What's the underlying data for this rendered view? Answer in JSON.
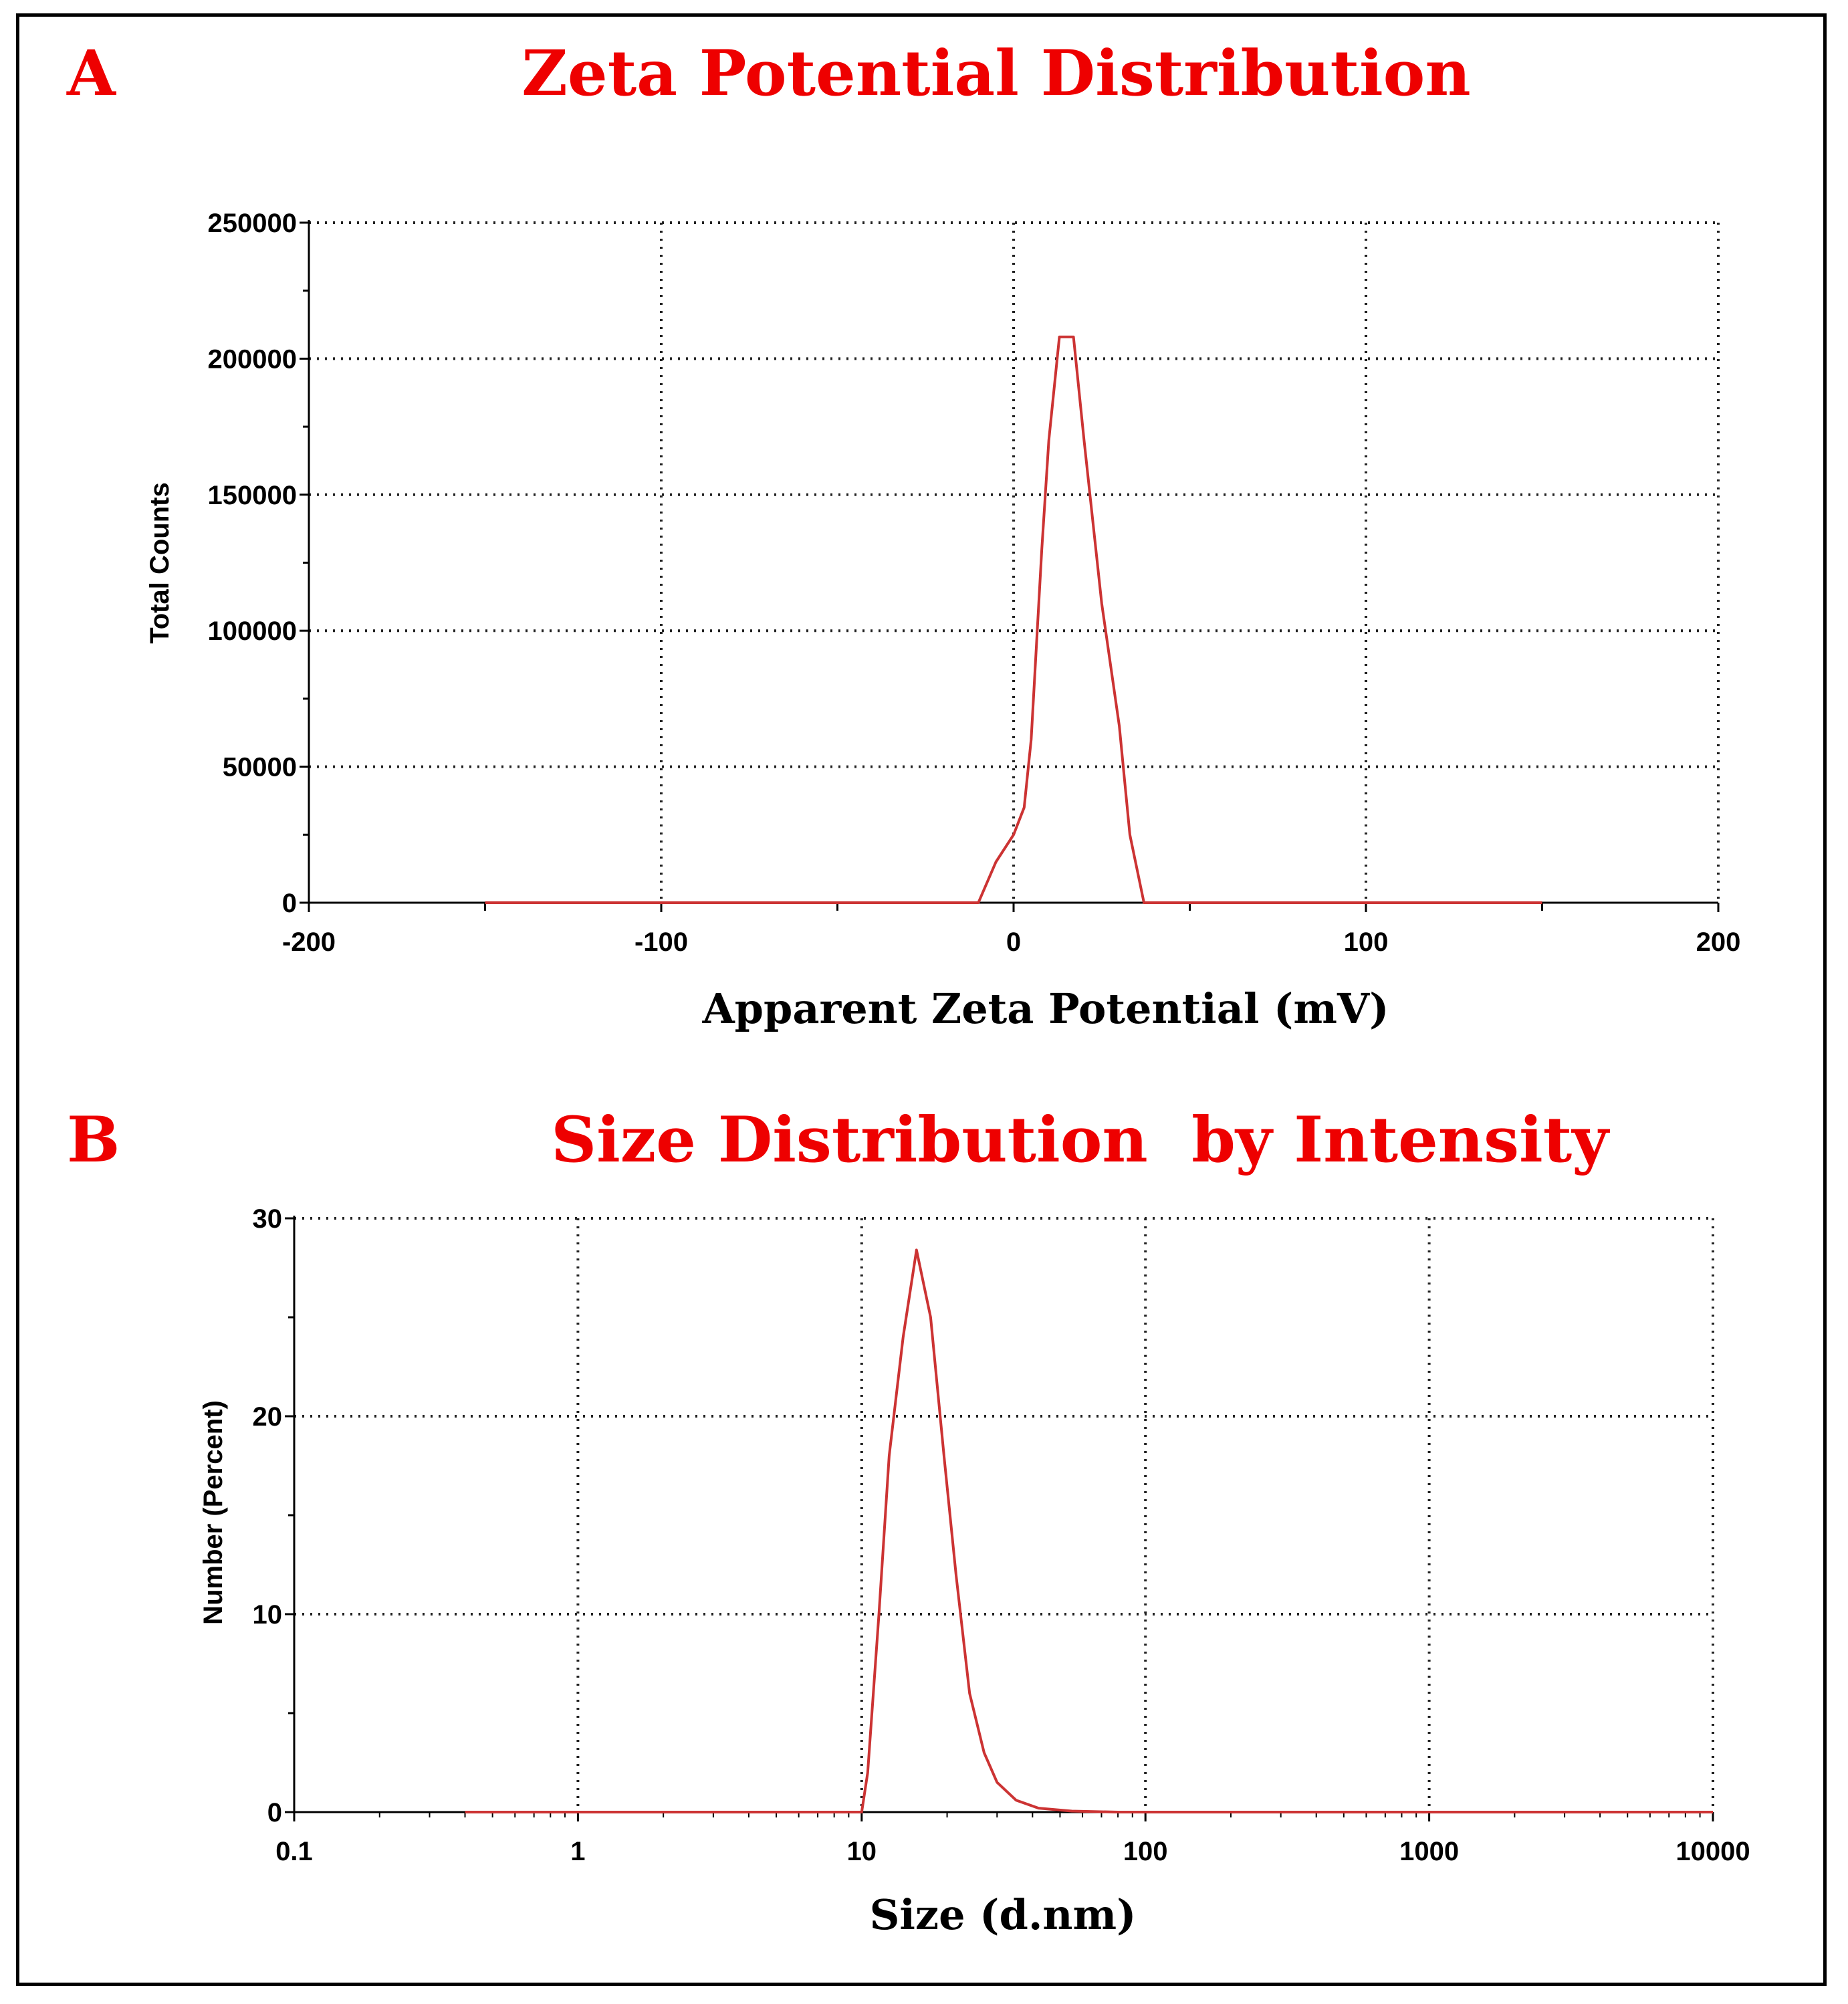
{
  "colors": {
    "accent": "#ee0000",
    "curve": "#cc3333",
    "axis": "#000000",
    "frame": "#000000"
  },
  "panels": [
    {
      "letter": "A",
      "title": "Zeta Potential Distribution"
    },
    {
      "letter": "B",
      "title": "Size Distribution  by Intensity"
    }
  ],
  "chart_data": [
    {
      "type": "line",
      "title": "Zeta Potential Distribution",
      "xlabel": "Apparent Zeta Potential (mV)",
      "ylabel": "Total Counts",
      "xscale": "linear",
      "xlim": [
        -200,
        200
      ],
      "ylim": [
        0,
        250000
      ],
      "xticks": [
        -200,
        -100,
        0,
        100,
        200
      ],
      "xtick_labels": [
        "-200",
        "-100",
        "0",
        "100",
        "200"
      ],
      "yticks": [
        0,
        50000,
        100000,
        150000,
        200000,
        250000
      ],
      "ytick_labels": [
        "0",
        "50000",
        "100000",
        "150000",
        "200000",
        "250000"
      ],
      "grid": true,
      "series": [
        {
          "name": "Zeta potential",
          "x": [
            -150,
            -10,
            -5,
            0,
            3,
            5,
            8,
            10,
            13,
            17,
            20,
            25,
            30,
            33,
            37,
            150
          ],
          "y": [
            0,
            0,
            15000,
            25000,
            35000,
            60000,
            130000,
            170000,
            208000,
            208000,
            170000,
            110000,
            65000,
            25000,
            0,
            0
          ]
        }
      ]
    },
    {
      "type": "line",
      "title": "Size Distribution  by Intensity",
      "xlabel": "Size (d.nm)",
      "ylabel": "Number (Percent)",
      "xscale": "log",
      "xlim": [
        0.1,
        10000
      ],
      "ylim": [
        0,
        30
      ],
      "xticks": [
        0.1,
        1,
        10,
        100,
        1000,
        10000
      ],
      "xtick_labels": [
        "0.1",
        "1",
        "10",
        "100",
        "1000",
        "10000"
      ],
      "yticks": [
        0,
        10,
        20,
        30
      ],
      "ytick_labels": [
        "0",
        "10",
        "20",
        "30"
      ],
      "grid": true,
      "series": [
        {
          "name": "Size distribution",
          "x": [
            0.4,
            10,
            10.5,
            11.5,
            12.5,
            14,
            15.6,
            17.5,
            19.5,
            21.5,
            24,
            27,
            30,
            35,
            42,
            55,
            80,
            10000
          ],
          "y": [
            0,
            0,
            2,
            10,
            18,
            24,
            28.4,
            25,
            18,
            12,
            6,
            3,
            1.5,
            0.6,
            0.2,
            0.05,
            0,
            0
          ]
        }
      ]
    }
  ]
}
